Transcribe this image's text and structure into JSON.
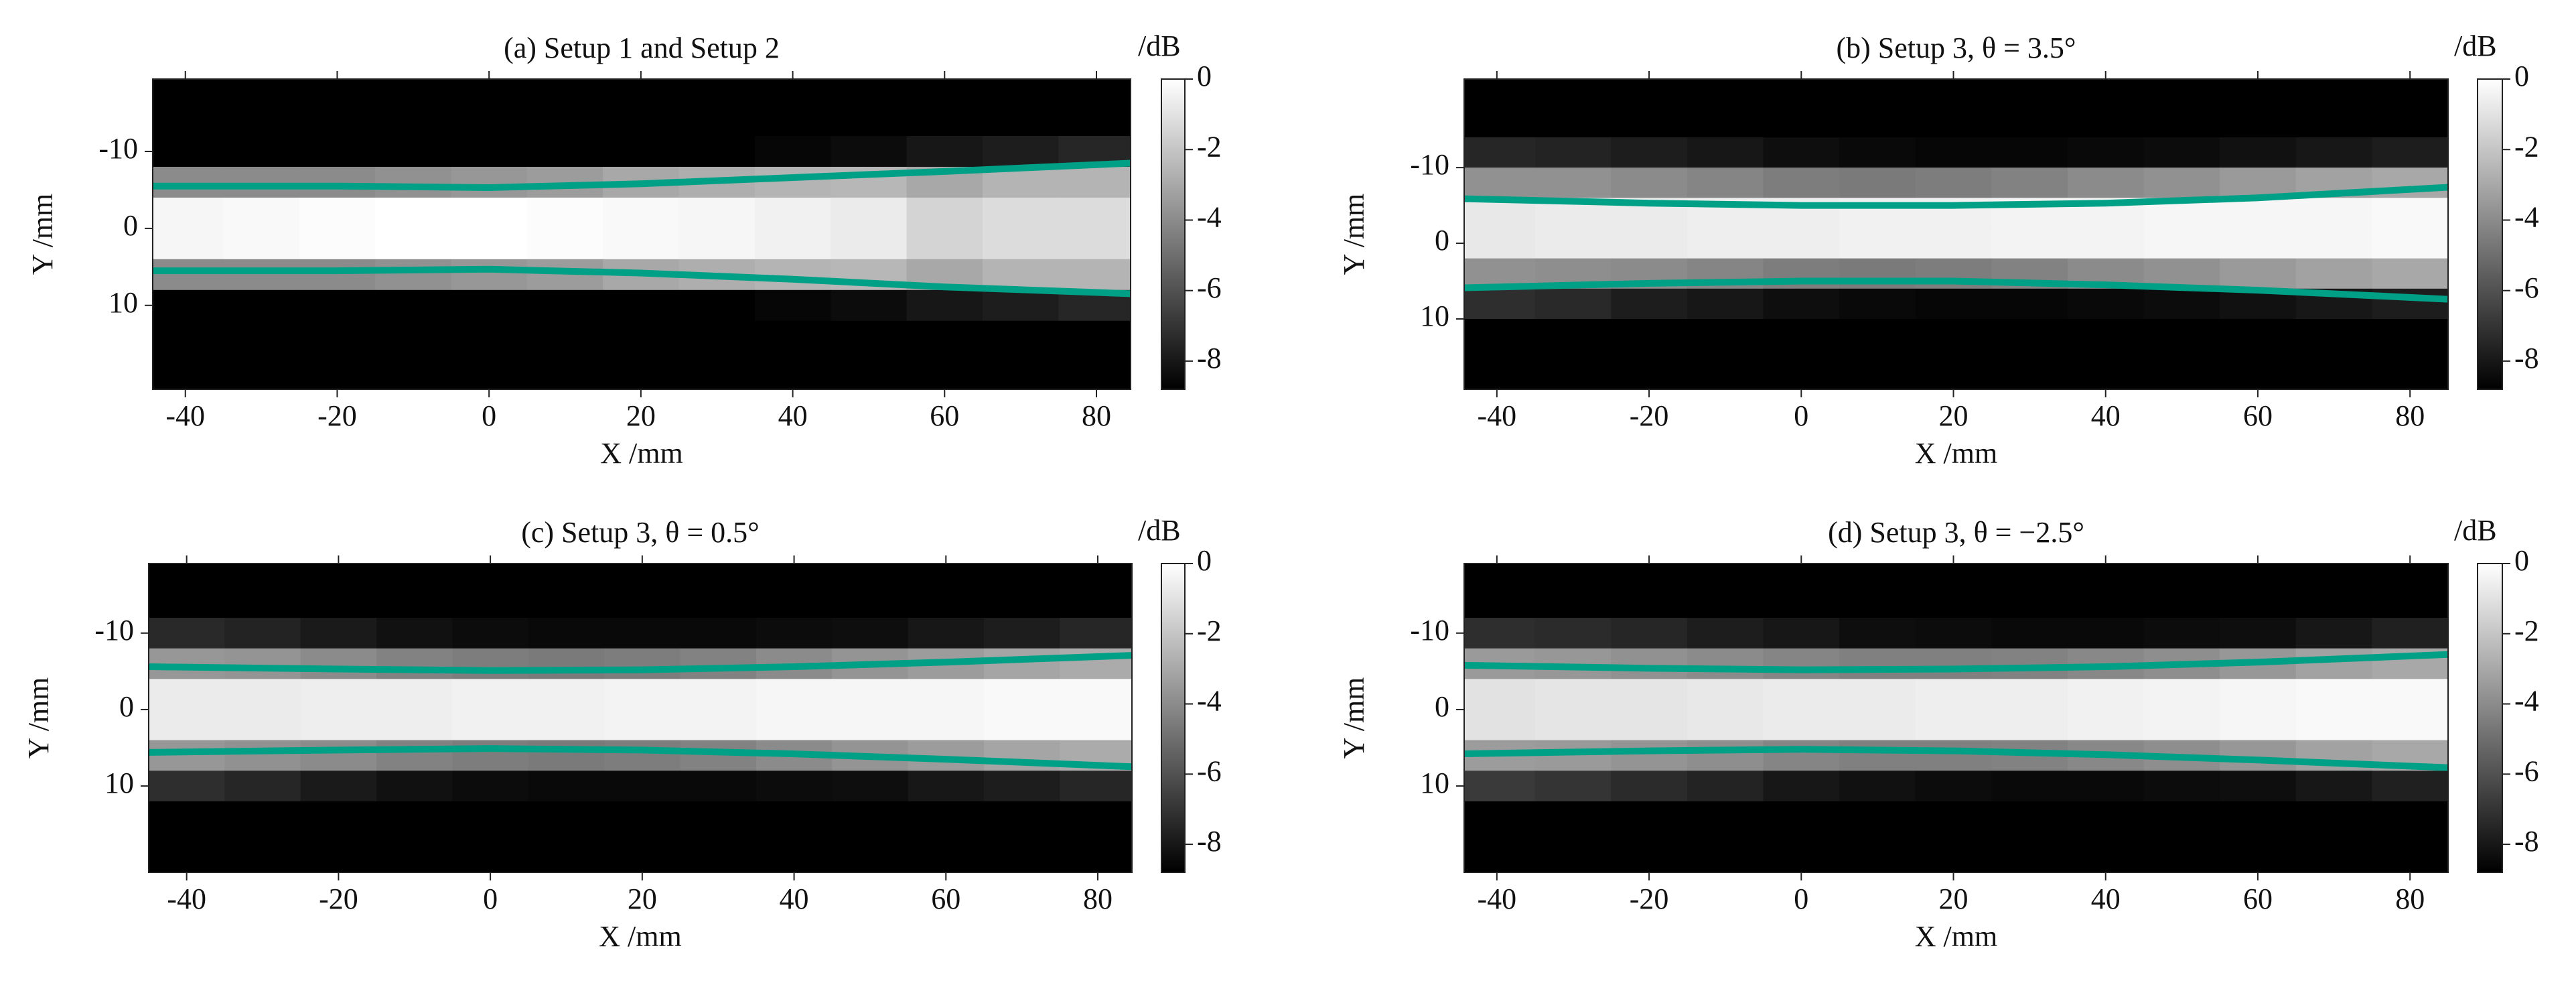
{
  "chart_data": [
    {
      "type": "heatmap",
      "title": "(a) Setup 1 and Setup 2",
      "xlabel": "X /mm",
      "ylabel": "Y /mm",
      "colorbar_label": "/dB",
      "colormap": [
        "#000000",
        "#ffffff"
      ],
      "xlim": [
        -44.3,
        84.5
      ],
      "ylim": [
        -19.4,
        20.9
      ],
      "xticks": [
        -40,
        -20,
        0,
        20,
        40,
        60,
        80
      ],
      "yticks": [
        -10,
        0,
        10
      ],
      "zlim": [
        -8.8,
        0
      ],
      "zticks": [
        0,
        -2,
        -4,
        -6,
        -8
      ],
      "xbins": [
        -45,
        -35,
        -25,
        -15,
        -5,
        5,
        15,
        25,
        35,
        45,
        55,
        65,
        75,
        85
      ],
      "ybins": [
        -20,
        -16,
        -12,
        -8,
        -4,
        0,
        4,
        8,
        12,
        16,
        20
      ],
      "z": [
        [
          -8.8,
          -8.8,
          -8.8,
          -8.8,
          -8.8,
          -8.8,
          -8.8,
          -8.8,
          -8.8,
          -8.8,
          -8.8,
          -8.8,
          -8.8
        ],
        [
          -8.8,
          -8.8,
          -8.8,
          -8.8,
          -8.8,
          -8.8,
          -8.8,
          -8.8,
          -8.8,
          -8.8,
          -8.8,
          -8.8,
          -8.8
        ],
        [
          -8.8,
          -8.8,
          -8.8,
          -8.8,
          -8.8,
          -8.8,
          -8.8,
          -8.8,
          -8.6,
          -8.4,
          -8,
          -7.8,
          -7.5
        ],
        [
          -4,
          -4,
          -4,
          -3.8,
          -3.6,
          -3.4,
          -3,
          -2.8,
          -2.6,
          -2.5,
          -3,
          -2.6,
          -2.6
        ],
        [
          -0.3,
          -0.2,
          -0.1,
          0,
          0,
          -0.1,
          -0.2,
          -0.3,
          -0.5,
          -0.7,
          -1.5,
          -1.2,
          -1.2
        ],
        [
          -0.3,
          -0.2,
          -0.1,
          0,
          0,
          -0.1,
          -0.2,
          -0.3,
          -0.5,
          -0.7,
          -1.5,
          -1.2,
          -1.2
        ],
        [
          -4,
          -4,
          -4,
          -3.8,
          -3.6,
          -3.4,
          -3,
          -2.8,
          -2.6,
          -2.5,
          -3,
          -2.6,
          -2.6
        ],
        [
          -8.8,
          -8.8,
          -8.8,
          -8.8,
          -8.8,
          -8.8,
          -8.8,
          -8.8,
          -8.6,
          -8.4,
          -8,
          -7.8,
          -7.5
        ],
        [
          -8.8,
          -8.8,
          -8.8,
          -8.8,
          -8.8,
          -8.8,
          -8.8,
          -8.8,
          -8.8,
          -8.8,
          -8.8,
          -8.8,
          -8.8
        ],
        [
          -8.8,
          -8.8,
          -8.8,
          -8.8,
          -8.8,
          -8.8,
          -8.8,
          -8.8,
          -8.8,
          -8.8,
          -8.8,
          -8.8,
          -8.8
        ]
      ],
      "series": [
        {
          "color": "#00a087",
          "x": [
            -45,
            -20,
            0,
            20,
            40,
            60,
            85
          ],
          "y": [
            -5.5,
            -5.5,
            -5.3,
            -5.8,
            -6.6,
            -7.4,
            -8.5
          ]
        },
        {
          "color": "#00a087",
          "x": [
            -45,
            -20,
            0,
            20,
            40,
            60,
            85
          ],
          "y": [
            5.5,
            5.5,
            5.3,
            5.8,
            6.6,
            7.6,
            8.5
          ]
        }
      ]
    },
    {
      "type": "heatmap",
      "title": "(b) Setup 3, θ = 3.5°",
      "xlabel": "X /mm",
      "ylabel": "Y /mm",
      "colorbar_label": "/dB",
      "colormap": [
        "#000000",
        "#ffffff"
      ],
      "xlim": [
        -44.3,
        85
      ],
      "ylim": [
        -21.7,
        19.3
      ],
      "xticks": [
        -40,
        -20,
        0,
        20,
        40,
        60,
        80
      ],
      "yticks": [
        -10,
        0,
        10
      ],
      "zlim": [
        -8.8,
        0
      ],
      "zticks": [
        0,
        -2,
        -4,
        -6,
        -8
      ],
      "xbins": [
        -45,
        -35,
        -25,
        -15,
        -5,
        5,
        15,
        25,
        35,
        45,
        55,
        65,
        75,
        85
      ],
      "ybins": [
        -22,
        -18,
        -14,
        -10,
        -6,
        -2,
        2,
        6,
        10,
        14,
        18
      ],
      "z": [
        [
          -8.8,
          -8.8,
          -8.8,
          -8.8,
          -8.8,
          -8.8,
          -8.8,
          -8.8,
          -8.8,
          -8.8,
          -8.8,
          -8.8,
          -8.8
        ],
        [
          -8.8,
          -8.8,
          -8.8,
          -8.8,
          -8.8,
          -8.8,
          -8.8,
          -8.8,
          -8.8,
          -8.8,
          -8.8,
          -8.8,
          -8.8
        ],
        [
          -7.5,
          -7.6,
          -7.8,
          -8,
          -8.3,
          -8.5,
          -8.6,
          -8.6,
          -8.5,
          -8.4,
          -8.2,
          -8,
          -7.8
        ],
        [
          -3.8,
          -3.8,
          -4,
          -4.2,
          -4.5,
          -4.6,
          -4.5,
          -4.3,
          -4,
          -3.8,
          -3.5,
          -3.2,
          -3
        ],
        [
          -0.8,
          -0.7,
          -0.7,
          -0.6,
          -0.6,
          -0.5,
          -0.5,
          -0.4,
          -0.4,
          -0.3,
          -0.3,
          -0.3,
          -0.2
        ],
        [
          -0.8,
          -0.7,
          -0.7,
          -0.6,
          -0.6,
          -0.5,
          -0.5,
          -0.4,
          -0.4,
          -0.3,
          -0.3,
          -0.3,
          -0.2
        ],
        [
          -3.8,
          -3.9,
          -4,
          -4.2,
          -4.5,
          -4.6,
          -4.5,
          -4.3,
          -4,
          -3.8,
          -3.5,
          -3.2,
          -3
        ],
        [
          -7.2,
          -7.4,
          -7.8,
          -8,
          -8.3,
          -8.5,
          -8.6,
          -8.6,
          -8.5,
          -8.4,
          -8.2,
          -8,
          -7.8
        ],
        [
          -8.8,
          -8.8,
          -8.8,
          -8.8,
          -8.8,
          -8.8,
          -8.8,
          -8.8,
          -8.8,
          -8.8,
          -8.8,
          -8.8,
          -8.8
        ],
        [
          -8.8,
          -8.8,
          -8.8,
          -8.8,
          -8.8,
          -8.8,
          -8.8,
          -8.8,
          -8.8,
          -8.8,
          -8.8,
          -8.8,
          -8.8
        ]
      ],
      "series": [
        {
          "color": "#00a087",
          "x": [
            -45,
            -20,
            0,
            20,
            40,
            60,
            85
          ],
          "y": [
            -5.9,
            -5.3,
            -5,
            -5,
            -5.3,
            -6,
            -7.4
          ]
        },
        {
          "color": "#00a087",
          "x": [
            -45,
            -20,
            0,
            20,
            40,
            60,
            85
          ],
          "y": [
            5.9,
            5.3,
            5,
            5,
            5.5,
            6.2,
            7.4
          ]
        }
      ]
    },
    {
      "type": "heatmap",
      "title": "(c) Setup 3, θ = 0.5°",
      "xlabel": "X /mm",
      "ylabel": "Y /mm",
      "colorbar_label": "/dB",
      "colormap": [
        "#000000",
        "#ffffff"
      ],
      "xlim": [
        -45,
        84.5
      ],
      "ylim": [
        -19.1,
        21.3
      ],
      "xticks": [
        -40,
        -20,
        0,
        20,
        40,
        60,
        80
      ],
      "yticks": [
        -10,
        0,
        10
      ],
      "zlim": [
        -8.8,
        0
      ],
      "zticks": [
        0,
        -2,
        -4,
        -6,
        -8
      ],
      "xbins": [
        -45,
        -35,
        -25,
        -15,
        -5,
        5,
        15,
        25,
        35,
        45,
        55,
        65,
        75,
        85
      ],
      "ybins": [
        -20,
        -16,
        -12,
        -8,
        -4,
        0,
        4,
        8,
        12,
        16,
        20
      ],
      "z": [
        [
          -8.8,
          -8.8,
          -8.8,
          -8.8,
          -8.8,
          -8.8,
          -8.8,
          -8.8,
          -8.8,
          -8.8,
          -8.8,
          -8.8,
          -8.8
        ],
        [
          -8.8,
          -8.8,
          -8.8,
          -8.8,
          -8.8,
          -8.8,
          -8.8,
          -8.8,
          -8.8,
          -8.8,
          -8.8,
          -8.8,
          -8.8
        ],
        [
          -7.4,
          -7.6,
          -7.9,
          -8.2,
          -8.4,
          -8.5,
          -8.5,
          -8.5,
          -8.4,
          -8.3,
          -8,
          -7.8,
          -7.5
        ],
        [
          -3.6,
          -3.7,
          -4,
          -4.3,
          -4.5,
          -4.6,
          -4.5,
          -4.3,
          -4,
          -3.7,
          -3.4,
          -3.1,
          -2.9
        ],
        [
          -0.7,
          -0.7,
          -0.6,
          -0.6,
          -0.5,
          -0.5,
          -0.4,
          -0.4,
          -0.3,
          -0.3,
          -0.3,
          -0.2,
          -0.2
        ],
        [
          -0.7,
          -0.7,
          -0.6,
          -0.6,
          -0.5,
          -0.5,
          -0.4,
          -0.4,
          -0.3,
          -0.3,
          -0.3,
          -0.2,
          -0.2
        ],
        [
          -3.6,
          -3.8,
          -4,
          -4.3,
          -4.5,
          -4.6,
          -4.5,
          -4.3,
          -4,
          -3.7,
          -3.4,
          -3.1,
          -2.9
        ],
        [
          -7.2,
          -7.5,
          -7.9,
          -8.2,
          -8.4,
          -8.5,
          -8.5,
          -8.5,
          -8.4,
          -8.3,
          -8,
          -7.8,
          -7.5
        ],
        [
          -8.8,
          -8.8,
          -8.8,
          -8.8,
          -8.8,
          -8.8,
          -8.8,
          -8.8,
          -8.8,
          -8.8,
          -8.8,
          -8.8,
          -8.8
        ],
        [
          -8.8,
          -8.8,
          -8.8,
          -8.8,
          -8.8,
          -8.8,
          -8.8,
          -8.8,
          -8.8,
          -8.8,
          -8.8,
          -8.8,
          -8.8
        ]
      ],
      "series": [
        {
          "color": "#00a087",
          "x": [
            -45,
            -20,
            0,
            20,
            40,
            60,
            85
          ],
          "y": [
            -5.6,
            -5.3,
            -5.1,
            -5.2,
            -5.6,
            -6.2,
            -7.1
          ]
        },
        {
          "color": "#00a087",
          "x": [
            -45,
            -20,
            0,
            20,
            40,
            60,
            85
          ],
          "y": [
            5.6,
            5.3,
            5.1,
            5.3,
            5.8,
            6.5,
            7.5
          ]
        }
      ]
    },
    {
      "type": "heatmap",
      "title": "(d) Setup 3, θ = −2.5°",
      "xlabel": "X /mm",
      "ylabel": "Y /mm",
      "colorbar_label": "/dB",
      "colormap": [
        "#000000",
        "#ffffff"
      ],
      "xlim": [
        -44.3,
        85
      ],
      "ylim": [
        -19.1,
        21.3
      ],
      "xticks": [
        -40,
        -20,
        0,
        20,
        40,
        60,
        80
      ],
      "yticks": [
        -10,
        0,
        10
      ],
      "zlim": [
        -8.8,
        0
      ],
      "zticks": [
        0,
        -2,
        -4,
        -6,
        -8
      ],
      "xbins": [
        -45,
        -35,
        -25,
        -15,
        -5,
        5,
        15,
        25,
        35,
        45,
        55,
        65,
        75,
        85
      ],
      "ybins": [
        -20,
        -16,
        -12,
        -8,
        -4,
        0,
        4,
        8,
        12,
        16,
        20
      ],
      "z": [
        [
          -8.8,
          -8.8,
          -8.8,
          -8.8,
          -8.8,
          -8.8,
          -8.8,
          -8.8,
          -8.8,
          -8.8,
          -8.8,
          -8.8,
          -8.8
        ],
        [
          -8.8,
          -8.8,
          -8.8,
          -8.8,
          -8.8,
          -8.8,
          -8.8,
          -8.8,
          -8.8,
          -8.8,
          -8.8,
          -8.8,
          -8.8
        ],
        [
          -7.2,
          -7.3,
          -7.5,
          -7.8,
          -8,
          -8.3,
          -8.4,
          -8.5,
          -8.5,
          -8.4,
          -8.3,
          -8,
          -7.7
        ],
        [
          -3.5,
          -3.6,
          -3.8,
          -4,
          -4.2,
          -4.4,
          -4.4,
          -4.3,
          -4.1,
          -3.9,
          -3.6,
          -3.2,
          -3
        ],
        [
          -1,
          -0.9,
          -0.9,
          -0.8,
          -0.7,
          -0.7,
          -0.6,
          -0.6,
          -0.5,
          -0.4,
          -0.3,
          -0.2,
          -0.2
        ],
        [
          -1,
          -0.9,
          -0.9,
          -0.8,
          -0.7,
          -0.7,
          -0.6,
          -0.6,
          -0.5,
          -0.4,
          -0.3,
          -0.2,
          -0.2
        ],
        [
          -3.4,
          -3.5,
          -3.7,
          -3.9,
          -4.2,
          -4.4,
          -4.4,
          -4.3,
          -4.1,
          -3.9,
          -3.6,
          -3.2,
          -3
        ],
        [
          -6.8,
          -7,
          -7.3,
          -7.6,
          -8,
          -8.2,
          -8.4,
          -8.5,
          -8.5,
          -8.4,
          -8.3,
          -8,
          -7.7
        ],
        [
          -8.8,
          -8.8,
          -8.8,
          -8.8,
          -8.8,
          -8.8,
          -8.8,
          -8.8,
          -8.8,
          -8.8,
          -8.8,
          -8.8,
          -8.8
        ],
        [
          -8.8,
          -8.8,
          -8.8,
          -8.8,
          -8.8,
          -8.8,
          -8.8,
          -8.8,
          -8.8,
          -8.8,
          -8.8,
          -8.8,
          -8.8
        ]
      ],
      "series": [
        {
          "color": "#00a087",
          "x": [
            -45,
            -20,
            0,
            20,
            40,
            60,
            85
          ],
          "y": [
            -5.8,
            -5.4,
            -5.2,
            -5.3,
            -5.6,
            -6.2,
            -7.2
          ]
        },
        {
          "color": "#00a087",
          "x": [
            -45,
            -20,
            0,
            20,
            40,
            60,
            85
          ],
          "y": [
            5.8,
            5.4,
            5.2,
            5.4,
            5.9,
            6.6,
            7.6
          ]
        }
      ]
    }
  ]
}
